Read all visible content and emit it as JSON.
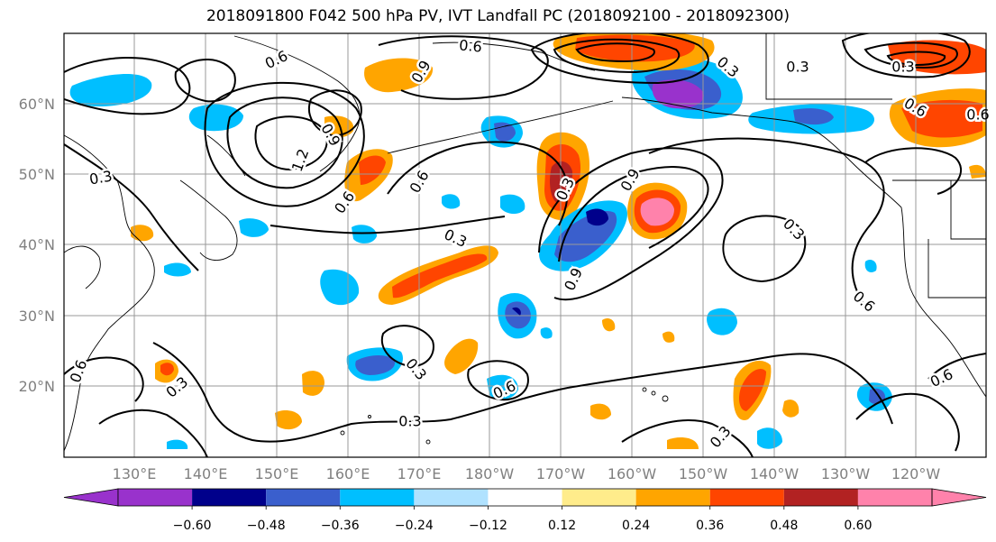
{
  "title": "2018091800 F042 500 hPa PV, IVT Landfall PC (2018092100 - 2018092300)",
  "map": {
    "lat_labels": [
      "60°N",
      "50°N",
      "40°N",
      "30°N",
      "20°N"
    ],
    "lon_labels": [
      "130°E",
      "140°E",
      "150°E",
      "160°E",
      "170°E",
      "180°W",
      "170°W",
      "160°W",
      "150°W",
      "140°W",
      "130°W",
      "120°W"
    ],
    "contour_labels": [
      "0.6",
      "0.6",
      "0.9",
      "0.3",
      "0.9",
      "1.2",
      "0.3",
      "0.6",
      "0.6",
      "0.3",
      "0.3",
      "0.6",
      "0.9",
      "0.9",
      "0.3",
      "0.3",
      "0.3",
      "0.6",
      "0.3",
      "0.3",
      "0.6",
      "0.3",
      "0.6",
      "0.6",
      "0.3",
      "0.6"
    ]
  },
  "colorbar": {
    "ticks": [
      "−0.60",
      "−0.48",
      "−0.36",
      "−0.24",
      "−0.12",
      "0.12",
      "0.24",
      "0.36",
      "0.48",
      "0.60"
    ],
    "colors": [
      "#9932cc",
      "#00008b",
      "#3a5fcd",
      "#00bfff",
      "#b0e2ff",
      "#ffffff",
      "#ffec8b",
      "#ffa500",
      "#ff4500",
      "#b22222",
      "#ff82ab",
      "#ff82ab"
    ]
  },
  "colors": {
    "grid": "#999999",
    "land_outline": "#000000"
  }
}
